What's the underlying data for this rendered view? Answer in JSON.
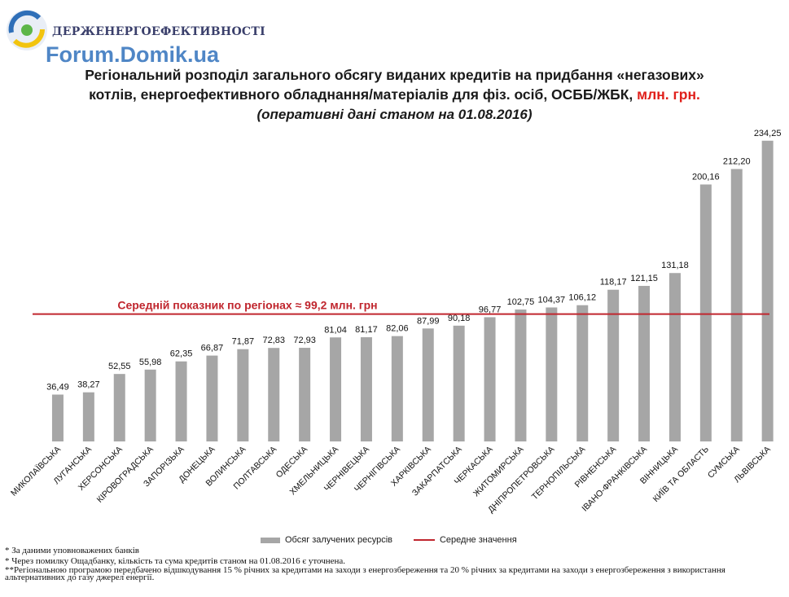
{
  "header": {
    "org_name": "ДЕРЖЕНЕРГОЕФЕКТИВНОСТІ",
    "watermark": "Forum.Domik.ua"
  },
  "title": {
    "line1": "Регіональний розподіл загального обсягу виданих кредитів на придбання «негазових»",
    "line2_main": "котлів,  енергоефективного обладнання/матеріалів для фіз. осіб, ОСББ/ЖБК,",
    "line2_unit": "млн. грн.",
    "subtitle": "(оперативні дані станом на 01.08.2016)"
  },
  "colors": {
    "bar": "#a6a6a6",
    "average_line": "#c0262e",
    "average_label": "#c0262e",
    "unit_text": "#e0201b"
  },
  "chart_data": {
    "type": "bar",
    "categories": [
      "МИКОЛАЇВСЬКА",
      "ЛУГАНСЬКА",
      "ХЕРСОНСЬКА",
      "КІРОВОГРАДСЬКА",
      "ЗАПОРІЗЬКА",
      "ДОНЕЦЬКА",
      "ВОЛИНСЬКА",
      "ПОЛТАВСЬКА",
      "ОДЕСЬКА",
      "ХМЕЛЬНИЦЬКА",
      "ЧЕРНІВЕЦЬКА",
      "ЧЕРНІГІВСЬКА",
      "ХАРКІВСЬКА",
      "ЗАКАРПАТСЬКА",
      "ЧЕРКАСЬКА",
      "ЖИТОМИРСЬКА",
      "ДНІПРОПЕТРОВСЬКА",
      "ТЕРНОПІЛЬСЬКА",
      "РІВНЕНСЬКА",
      "ІВАНО-ФРАНКІВСЬКА",
      "ВІННИЦЬКА",
      "КИЇВ ТА ОБЛАСТЬ",
      "СУМСЬКА",
      "ЛЬВІВСЬКА"
    ],
    "series": [
      {
        "name": "Обсяг залучених ресурсів",
        "values": [
          36.49,
          38.27,
          52.55,
          55.98,
          62.35,
          66.87,
          71.87,
          72.83,
          72.93,
          81.04,
          81.17,
          82.06,
          87.99,
          90.18,
          96.77,
          102.75,
          104.37,
          106.12,
          118.17,
          121.15,
          131.18,
          200.16,
          212.2,
          234.25
        ]
      }
    ],
    "value_labels": [
      "36,49",
      "38,27",
      "52,55",
      "55,98",
      "62,35",
      "66,87",
      "71,87",
      "72,83",
      "72,93",
      "81,04",
      "81,17",
      "82,06",
      "87,99",
      "90,18",
      "96,77",
      "102,75",
      "104,37",
      "106,12",
      "118,17",
      "121,15",
      "131,18",
      "200,16",
      "212,20",
      "234,25"
    ],
    "average": {
      "name": "Середнє значення",
      "value": 99.2,
      "label": "Середній показник по регіонах ≈ 99,2 млн. грн"
    },
    "ylim": [
      0,
      236
    ],
    "grid": false,
    "legend_position": "bottom"
  },
  "legend": {
    "bar_label": "Обсяг залучених ресурсів",
    "line_label": "Середне значення"
  },
  "footnotes": [
    "* За даними уповноважених банків",
    "* Через помилку Ощадбанку, кількість та сума кредитів станом на 01.08.2016 є уточнена.",
    "**Регіональною програмою передбачено відшкодування 15 % річних за кредитами на заходи з енергозбереження та 20 % річних за кредитами на заходи з енергозбереження з використання альтернативних до газу джерел енергії."
  ]
}
